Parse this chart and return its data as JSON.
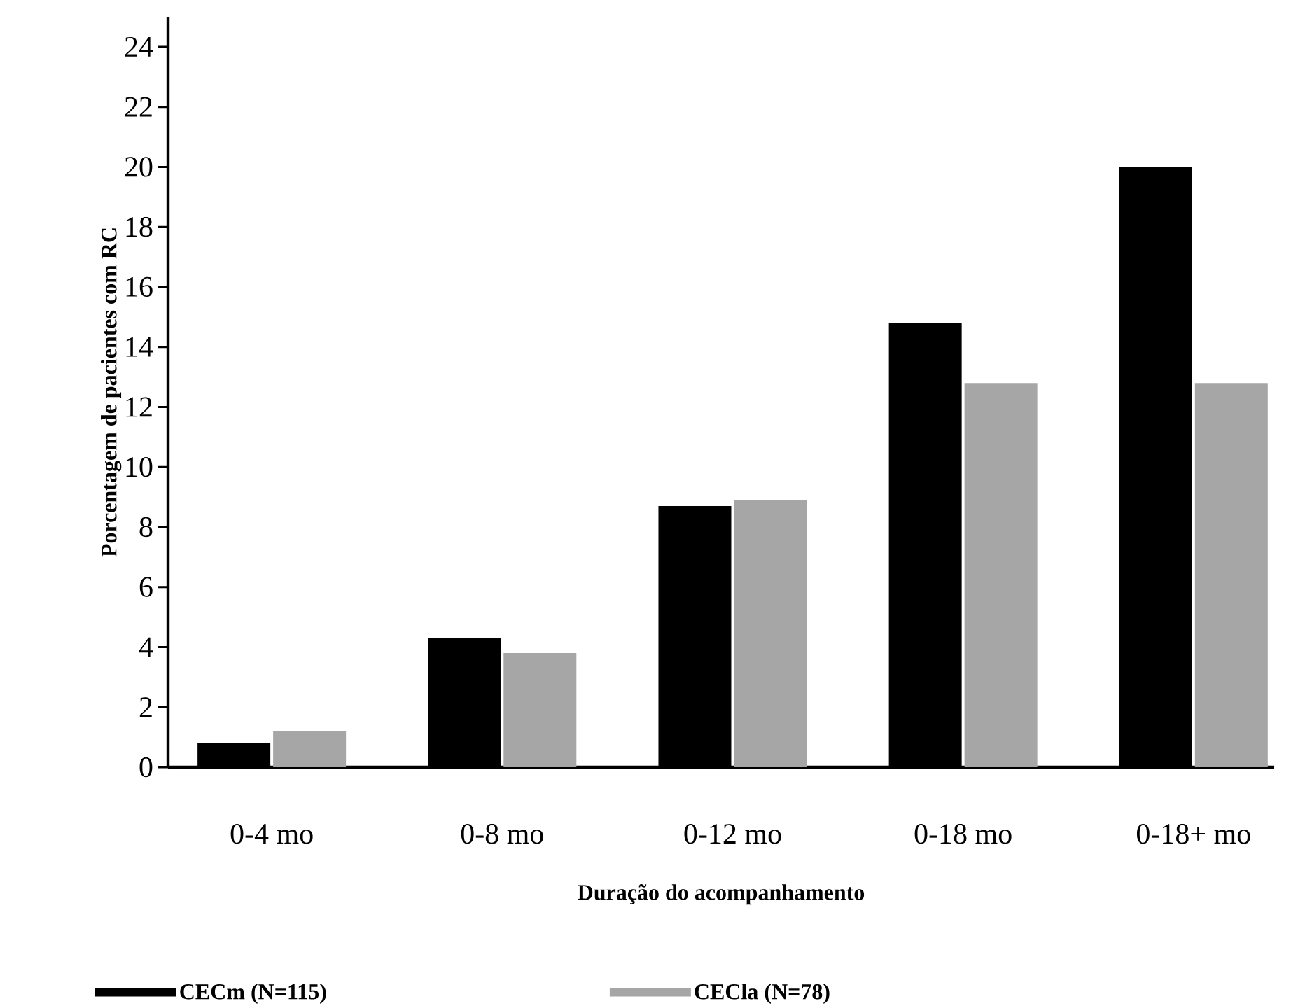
{
  "chart_data": {
    "type": "bar",
    "xlabel": "Duração do acompanhamento",
    "ylabel": "Porcentagem de pacientes com RC",
    "categories": [
      "0-4 mo",
      "0-8 mo",
      "0-12 mo",
      "0-18 mo",
      "0-18+ mo"
    ],
    "series": [
      {
        "name": "CECm (N=115)",
        "color": "#000000",
        "values": [
          0.8,
          4.3,
          8.7,
          14.8,
          20.0
        ]
      },
      {
        "name": "CECla (N=78)",
        "color": "#a6a6a6",
        "values": [
          1.2,
          3.8,
          8.9,
          12.8,
          12.8
        ]
      }
    ],
    "ylim": [
      0,
      25
    ],
    "yticks": [
      0,
      2,
      4,
      6,
      8,
      10,
      12,
      14,
      16,
      18,
      20,
      22,
      24
    ],
    "legend": "bottom"
  }
}
